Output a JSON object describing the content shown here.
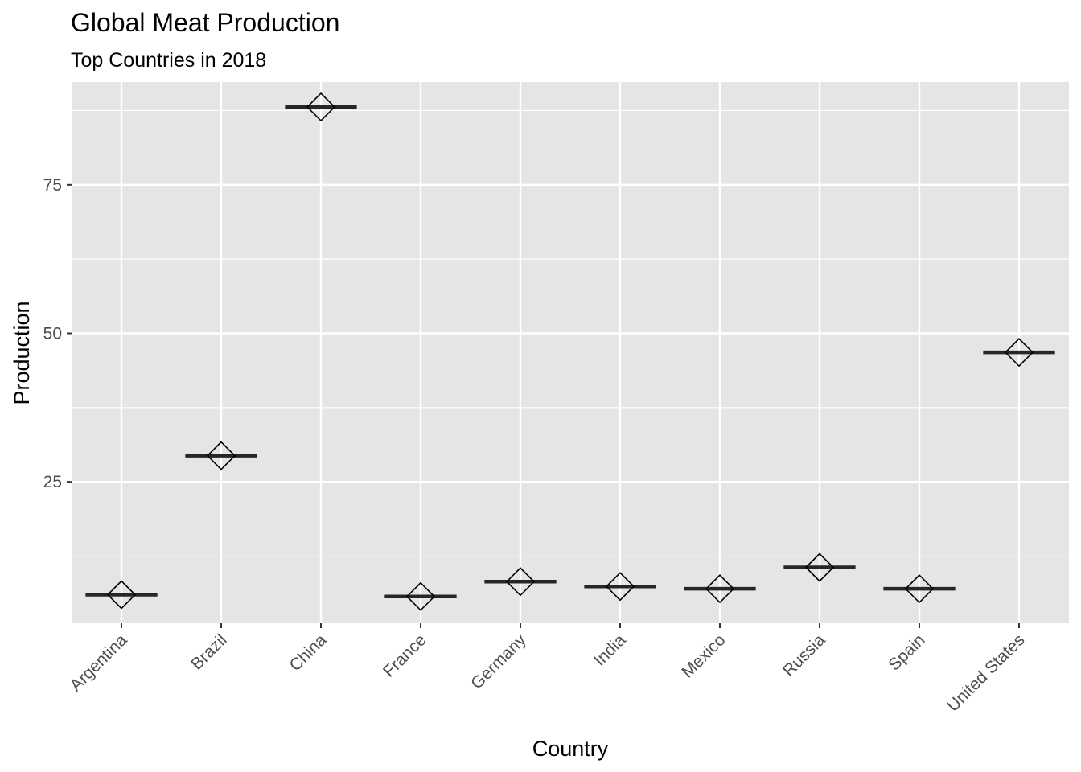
{
  "chart_data": {
    "type": "crossbar",
    "title": "Global Meat Production",
    "subtitle": "Top Countries in 2018",
    "xlabel": "Country",
    "ylabel": "Production",
    "categories": [
      "Argentina",
      "Brazil",
      "China",
      "France",
      "Germany",
      "India",
      "Mexico",
      "Russia",
      "Spain",
      "United States"
    ],
    "values": [
      6.0,
      29.4,
      88.1,
      5.7,
      8.2,
      7.4,
      7.0,
      10.6,
      7.0,
      46.8
    ],
    "ylim": [
      1.2,
      92.3
    ],
    "yticks": [
      25,
      50,
      75
    ],
    "ytick_labels": [
      "25",
      "50",
      "75"
    ],
    "grid": true,
    "legend": "none",
    "colors": {
      "panel_background": "#e5e5e5",
      "grid": "#ffffff",
      "crossbar": "#262626",
      "marker_stroke": "#000000"
    }
  }
}
